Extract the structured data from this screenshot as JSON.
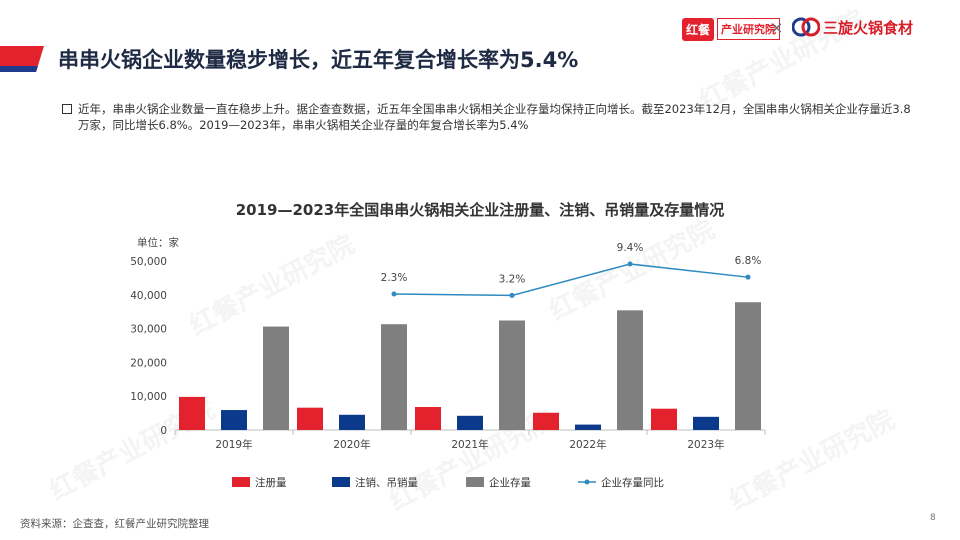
{
  "header": {
    "title": "串串火锅企业数量稳步增长，近五年复合增长率为5.4%",
    "logo_hongcan_box": "红餐",
    "logo_hongcan_text": "产业研究院",
    "logo_separator": "×",
    "logo_sanxuan_text": "三旋火锅食材"
  },
  "bullet": {
    "text": "近年，串串火锅企业数量一直在稳步上升。据企查查数据，近五年全国串串火锅相关企业存量均保持正向增长。截至2023年12月，全国串串火锅相关企业存量近3.8万家，同比增长6.8%。2019—2023年，串串火锅相关企业存量的年复合增长率为5.4%"
  },
  "colors": {
    "accent_red": "#e3222d",
    "navy": "#0b3a8c",
    "gray_bar": "#7f7f7f",
    "line_blue": "#2e8bc0"
  },
  "watermark": {
    "text": "红餐产业研究院"
  },
  "chart_data": {
    "type": "bar",
    "title": "2019—2023年全国串串火锅相关企业注册量、注销、吊销量及存量情况",
    "unit_label": "单位：家",
    "categories": [
      "2019年",
      "2020年",
      "2021年",
      "2022年",
      "2023年"
    ],
    "ylim": [
      0,
      50000
    ],
    "yticks": [
      "0",
      "10,000",
      "20,000",
      "30,000",
      "40,000",
      "50,000"
    ],
    "ytick_values": [
      0,
      10000,
      20000,
      30000,
      40000,
      50000
    ],
    "series": [
      {
        "name": "注册量",
        "color": "#e3222d",
        "values": [
          9800,
          6600,
          6800,
          5100,
          6300
        ]
      },
      {
        "name": "注销、吊销量",
        "color": "#0b3a8c",
        "values": [
          5900,
          4500,
          4200,
          1600,
          3900
        ]
      },
      {
        "name": "企业存量",
        "color": "#7f7f7f",
        "values": [
          30600,
          31300,
          32400,
          35400,
          37800
        ]
      }
    ],
    "line_series": {
      "name": "企业存量同比",
      "color": "#2e8bc0",
      "categories": [
        "2020年",
        "2021年",
        "2022年",
        "2023年"
      ],
      "values": [
        2.3,
        3.2,
        9.4,
        6.8
      ],
      "labels": [
        "2.3%",
        "3.2%",
        "9.4%",
        "6.8%"
      ]
    },
    "legend_position": "bottom",
    "grid": false
  },
  "footer": {
    "source": "资料来源：企查查，红餐产业研究院整理",
    "page": "8"
  }
}
